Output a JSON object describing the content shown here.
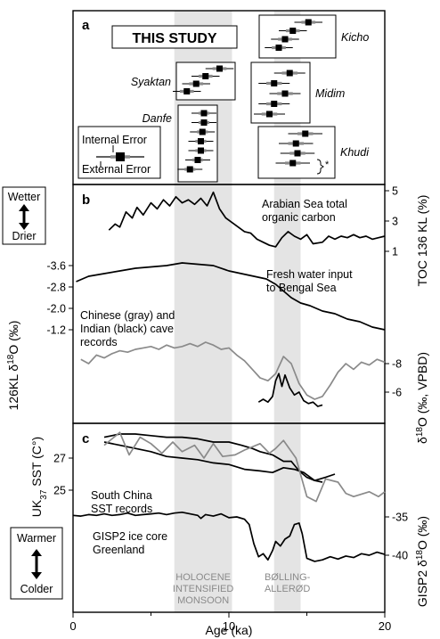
{
  "chart_data": {
    "type": "line",
    "x_axis": {
      "label": "Age (ka)",
      "range": [
        0,
        20
      ],
      "ticks": [
        0,
        10,
        20
      ],
      "minor_ticks": [
        5,
        15
      ]
    },
    "shaded_periods": [
      {
        "label_lines": [
          "HOLOCENE",
          "INTENSIFIED",
          "MONSOON"
        ],
        "x_range": [
          6.5,
          10.2
        ]
      },
      {
        "label_lines": [
          "BØLLING-",
          "ALLERØD"
        ],
        "x_range": [
          12.9,
          14.6
        ]
      }
    ],
    "panels": [
      {
        "tag": "a",
        "title": "THIS STUDY",
        "legend": {
          "internal": "Internal Error",
          "external": "External Error"
        },
        "footnote": "*",
        "groups": [
          {
            "name": "Kicho",
            "points": [
              {
                "age": 15.1,
                "ext": 0.9,
                "int": 0.45
              },
              {
                "age": 14.1,
                "ext": 0.9,
                "int": 0.45
              },
              {
                "age": 13.6,
                "ext": 0.9,
                "int": 0.45
              },
              {
                "age": 13.2,
                "ext": 0.9,
                "int": 0.45
              }
            ]
          },
          {
            "name": "Syaktan",
            "points": [
              {
                "age": 9.4,
                "ext": 0.9,
                "int": 0.45
              },
              {
                "age": 8.5,
                "ext": 0.9,
                "int": 0.45
              },
              {
                "age": 7.9,
                "ext": 0.9,
                "int": 0.45
              },
              {
                "age": 7.3,
                "ext": 0.9,
                "int": 0.45
              }
            ]
          },
          {
            "name": "Midim",
            "points": [
              {
                "age": 13.9,
                "ext": 1.0,
                "int": 0.5
              },
              {
                "age": 12.9,
                "ext": 1.0,
                "int": 0.5
              },
              {
                "age": 13.6,
                "ext": 1.0,
                "int": 0.5
              },
              {
                "age": 12.9,
                "ext": 1.0,
                "int": 0.5
              },
              {
                "age": 12.6,
                "ext": 1.0,
                "int": 0.5
              }
            ]
          },
          {
            "name": "Danfe",
            "points": [
              {
                "age": 8.4,
                "ext": 0.8,
                "int": 0.35
              },
              {
                "age": 8.4,
                "ext": 0.8,
                "int": 0.35
              },
              {
                "age": 8.3,
                "ext": 0.8,
                "int": 0.35
              },
              {
                "age": 8.2,
                "ext": 0.8,
                "int": 0.35
              },
              {
                "age": 8.2,
                "ext": 0.8,
                "int": 0.35
              },
              {
                "age": 8.0,
                "ext": 0.8,
                "int": 0.35
              },
              {
                "age": 7.5,
                "ext": 0.8,
                "int": 0.35
              }
            ]
          },
          {
            "name": "Khudi",
            "points": [
              {
                "age": 14.9,
                "ext": 1.1,
                "int": 0.5
              },
              {
                "age": 14.3,
                "ext": 1.1,
                "int": 0.5
              },
              {
                "age": 14.4,
                "ext": 1.1,
                "int": 0.5
              },
              {
                "age": 14.1,
                "ext": 1.1,
                "int": 0.5
              }
            ]
          }
        ]
      },
      {
        "tag": "b",
        "side_labels": {
          "top": "Wetter",
          "bottom": "Drier"
        },
        "left_axis": {
          "label": "126KL δ18O (‰)",
          "ticks": [
            "-3.6",
            "-2.8",
            "-2.0",
            "-1.2"
          ]
        },
        "right_axis_top": {
          "label": "TOC 136 KL (%)",
          "ticks": [
            "5",
            "3",
            "1"
          ]
        },
        "right_axis_bottom": {
          "label": "δ18O (‰, VPBD)",
          "ticks": [
            "-8",
            "-6"
          ]
        },
        "series": [
          {
            "name": "Arabian Sea total organic carbon",
            "label_lines": [
              "Arabian Sea total",
              "organic carbon"
            ],
            "color": "#000000",
            "unit": "TOC %",
            "x": [
              2.3,
              2.7,
              3.0,
              3.4,
              3.8,
              4.1,
              4.5,
              5.0,
              5.4,
              5.8,
              6.2,
              6.6,
              7.0,
              7.4,
              7.8,
              8.2,
              8.6,
              9.0,
              9.4,
              9.8,
              10.2,
              10.6,
              11.0,
              11.4,
              11.8,
              12.2,
              12.6,
              13.0,
              13.4,
              13.8,
              14.2,
              14.6,
              15.0,
              15.4,
              16.0,
              16.4,
              16.8,
              17.2,
              17.6,
              18.0,
              18.4,
              18.8,
              19.2,
              19.6,
              20.0
            ],
            "y": [
              2.4,
              2.8,
              2.6,
              3.6,
              3.2,
              3.9,
              3.4,
              4.2,
              3.8,
              4.4,
              4.0,
              4.6,
              4.2,
              4.4,
              4.1,
              4.5,
              4.0,
              4.9,
              3.8,
              3.2,
              2.9,
              2.6,
              2.3,
              2.2,
              1.8,
              1.6,
              1.4,
              1.3,
              1.9,
              2.3,
              2.0,
              1.8,
              2.1,
              1.5,
              1.6,
              2.0,
              1.8,
              2.0,
              1.9,
              2.1,
              1.9,
              2.0,
              1.8,
              1.9,
              2.0
            ]
          },
          {
            "name": "Fresh water input to Bengal Sea",
            "label_lines": [
              "Fresh water input",
              "to Bengal Sea"
            ],
            "color": "#000000",
            "unit": "‰",
            "x": [
              0.2,
              1.0,
              2.0,
              3.0,
              4.0,
              5.0,
              6.0,
              7.0,
              8.0,
              9.0,
              10.0,
              10.8,
              11.6,
              12.4,
              13.0,
              13.6,
              14.0,
              14.6,
              15.2,
              16.0,
              16.8,
              17.6,
              18.4,
              19.2,
              20.0
            ],
            "y": [
              -3.0,
              -3.2,
              -3.3,
              -3.4,
              -3.5,
              -3.55,
              -3.6,
              -3.7,
              -3.65,
              -3.6,
              -3.4,
              -3.3,
              -3.2,
              -3.1,
              -2.9,
              -2.6,
              -2.4,
              -2.2,
              -2.1,
              -1.9,
              -1.8,
              -1.6,
              -1.5,
              -1.3,
              -1.2
            ]
          },
          {
            "name": "Chinese cave records",
            "label_lines": [
              "Chinese (gray) and",
              "Indian (black) cave",
              "records"
            ],
            "color": "#8a8a8a",
            "unit": "‰",
            "x": [
              0.5,
              1.0,
              1.5,
              2.0,
              2.5,
              3.0,
              3.5,
              4.0,
              4.5,
              5.0,
              5.5,
              6.0,
              6.5,
              7.0,
              7.5,
              8.0,
              8.5,
              9.0,
              9.5,
              10.0,
              10.5,
              11.0,
              11.5,
              12.0,
              12.5,
              13.0,
              13.5,
              14.0,
              14.5,
              15.0,
              15.5,
              16.0,
              16.5,
              17.0,
              17.5,
              18.0,
              18.5,
              19.0,
              19.5,
              20.0
            ],
            "y": [
              -8.3,
              -8.0,
              -8.6,
              -8.4,
              -8.7,
              -8.9,
              -8.8,
              -9.0,
              -9.1,
              -9.2,
              -9.0,
              -9.3,
              -9.1,
              -9.2,
              -9.4,
              -9.2,
              -9.5,
              -9.3,
              -9.0,
              -9.1,
              -8.6,
              -8.2,
              -7.6,
              -7.0,
              -6.8,
              -7.3,
              -8.5,
              -8.0,
              -6.6,
              -5.8,
              -5.5,
              -5.7,
              -6.5,
              -7.4,
              -8.0,
              -7.6,
              -8.1,
              -7.9,
              -8.3,
              -8.1
            ]
          },
          {
            "name": "Indian cave records",
            "color": "#000000",
            "unit": "‰",
            "x": [
              11.9,
              12.2,
              12.5,
              12.8,
              13.0,
              13.2,
              13.4,
              13.6,
              13.9,
              14.2,
              14.5,
              14.8,
              15.1,
              15.4,
              15.7,
              16.0
            ],
            "y": [
              -5.3,
              -5.5,
              -5.3,
              -5.7,
              -6.8,
              -7.3,
              -6.4,
              -7.2,
              -6.3,
              -5.8,
              -6.0,
              -5.4,
              -5.2,
              -5.3,
              -5.0,
              -5.1
            ]
          }
        ]
      },
      {
        "tag": "c",
        "side_labels": {
          "top": "Warmer",
          "bottom": "Colder"
        },
        "left_axis": {
          "label": "UK37 SST (C°)",
          "ticks": [
            "27",
            "25"
          ]
        },
        "right_axis": {
          "label": "GISP2 δ18O (‰)",
          "ticks": [
            "-35",
            "-40"
          ]
        },
        "series": [
          {
            "name": "South China SST record 1",
            "label_lines": [
              "South China",
              "SST records"
            ],
            "color": "#000000",
            "unit": "°C",
            "x": [
              2.0,
              3.0,
              4.0,
              5.0,
              6.0,
              7.0,
              8.0,
              9.0,
              10.0,
              10.8,
              11.5,
              12.0,
              12.8,
              13.5,
              14.0,
              14.5,
              15.0,
              15.5,
              16.0
            ],
            "y": [
              28.3,
              28.5,
              28.5,
              28.4,
              28.3,
              28.3,
              28.2,
              28.0,
              28.0,
              27.8,
              27.6,
              27.4,
              27.2,
              26.8,
              26.8,
              26.2,
              25.8,
              25.6,
              25.5
            ]
          },
          {
            "name": "South China SST record 2",
            "color": "#000000",
            "unit": "°C",
            "x": [
              2.0,
              3.0,
              4.0,
              5.0,
              6.0,
              7.0,
              8.0,
              9.0,
              10.0,
              11.0,
              12.0,
              12.8,
              13.5,
              14.2,
              14.8,
              15.5,
              16.2,
              16.8
            ],
            "y": [
              28.0,
              27.8,
              27.6,
              27.4,
              27.1,
              27.0,
              26.9,
              26.7,
              26.6,
              26.3,
              26.2,
              26.1,
              26.4,
              26.3,
              26.1,
              25.6,
              25.8,
              26.0
            ]
          },
          {
            "name": "South China SST record 3",
            "color": "#8a8a8a",
            "unit": "°C",
            "x": [
              2.0,
              3.0,
              3.6,
              4.3,
              5.0,
              5.7,
              6.4,
              7.0,
              7.8,
              8.4,
              9.0,
              9.6,
              10.4,
              11.0,
              12.0,
              12.6,
              13.0,
              13.5,
              14.3,
              15.0,
              15.6,
              16.2,
              17.0,
              17.5,
              18.0,
              19.0,
              19.6,
              20.0
            ],
            "y": [
              27.8,
              28.6,
              27.2,
              28.3,
              27.9,
              27.3,
              28.0,
              27.4,
              27.8,
              27.0,
              27.9,
              27.1,
              27.2,
              27.5,
              27.9,
              27.3,
              27.6,
              28.1,
              27.0,
              24.6,
              24.3,
              25.7,
              25.5,
              24.8,
              24.6,
              24.9,
              24.6,
              24.9
            ]
          },
          {
            "name": "GISP2 ice core Greenland",
            "label_lines": [
              "GISP2 ice core",
              "Greenland"
            ],
            "color": "#000000",
            "unit": "‰",
            "x": [
              0.0,
              0.5,
              1.0,
              1.5,
              2.0,
              2.5,
              3.0,
              3.5,
              4.0,
              4.5,
              5.0,
              5.5,
              6.0,
              6.5,
              7.0,
              7.5,
              8.0,
              8.2,
              8.5,
              9.0,
              9.5,
              10.0,
              10.5,
              11.0,
              11.3,
              11.6,
              11.9,
              12.2,
              12.5,
              12.8,
              13.0,
              13.3,
              13.6,
              13.9,
              14.2,
              14.5,
              14.7,
              15.0,
              15.5,
              16.0,
              16.5,
              17.0,
              17.5,
              18.0,
              18.5,
              19.0,
              19.5,
              20.0
            ],
            "y": [
              -34.8,
              -34.9,
              -34.7,
              -34.8,
              -34.6,
              -34.8,
              -34.7,
              -34.5,
              -34.8,
              -34.7,
              -34.6,
              -34.5,
              -34.7,
              -34.5,
              -34.4,
              -34.6,
              -34.8,
              -35.2,
              -34.7,
              -34.9,
              -34.6,
              -35.1,
              -35.0,
              -35.3,
              -36.0,
              -38.5,
              -40.2,
              -39.8,
              -40.6,
              -39.4,
              -38.2,
              -38.8,
              -37.9,
              -37.5,
              -36.0,
              -35.8,
              -37.2,
              -40.4,
              -40.8,
              -40.6,
              -40.2,
              -40.5,
              -40.1,
              -40.3,
              -39.8,
              -40.0,
              -39.6,
              -39.9
            ]
          }
        ]
      }
    ]
  }
}
